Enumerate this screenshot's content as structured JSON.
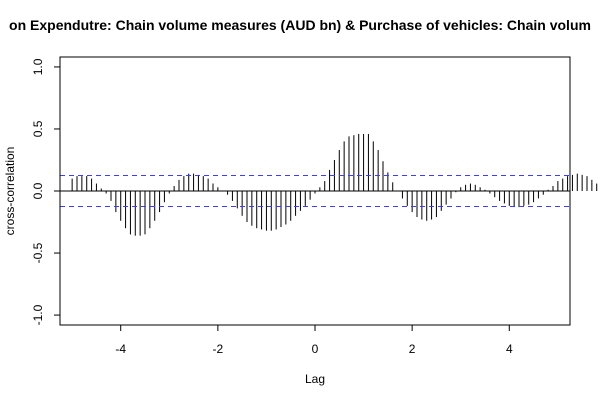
{
  "chart_data": {
    "type": "bar",
    "title": "on Expendutre: Chain volume measures (AUD bn) & Purchase of vehicles: Chain volum",
    "xlabel": "Lag",
    "ylabel": "cross-correlation",
    "xlim": [
      -5.25,
      5.25
    ],
    "ylim": [
      -1.08,
      1.08
    ],
    "x_ticks": [
      "-4",
      "-2",
      "0",
      "2",
      "4"
    ],
    "y_ticks": [
      "-1.0",
      "-0.5",
      "0.0",
      "0.5",
      "1.0"
    ],
    "confidence_limit": 0.125,
    "grid": false,
    "lag_step": 0.1,
    "lag_start": -5.0,
    "values": [
      0.1,
      0.12,
      0.12,
      0.12,
      0.1,
      0.06,
      0.02,
      -0.02,
      -0.08,
      -0.17,
      -0.24,
      -0.3,
      -0.35,
      -0.36,
      -0.36,
      -0.35,
      -0.3,
      -0.24,
      -0.17,
      -0.09,
      -0.02,
      0.04,
      0.09,
      0.12,
      0.14,
      0.14,
      0.13,
      0.12,
      0.1,
      0.06,
      0.03,
      0,
      -0.03,
      -0.08,
      -0.14,
      -0.2,
      -0.25,
      -0.28,
      -0.3,
      -0.31,
      -0.32,
      -0.32,
      -0.31,
      -0.29,
      -0.27,
      -0.24,
      -0.2,
      -0.16,
      -0.12,
      -0.07,
      -0.02,
      0.03,
      0.08,
      0.17,
      0.25,
      0.33,
      0.4,
      0.44,
      0.45,
      0.46,
      0.46,
      0.46,
      0.4,
      0.33,
      0.24,
      0.15,
      0.07,
      0,
      -0.06,
      -0.12,
      -0.17,
      -0.21,
      -0.23,
      -0.24,
      -0.23,
      -0.21,
      -0.16,
      -0.11,
      -0.06,
      -0.01,
      0.03,
      0.05,
      0.06,
      0.05,
      0.03,
      0.01,
      -0.02,
      -0.05,
      -0.08,
      -0.1,
      -0.12,
      -0.13,
      -0.13,
      -0.12,
      -0.11,
      -0.09,
      -0.06,
      -0.03,
      0.01,
      0.04,
      0.08,
      0.1,
      0.12,
      0.13,
      0.14,
      0.13,
      0.12,
      0.09,
      0.06,
      0.03,
      0,
      -0.03,
      -0.06,
      -0.09,
      -0.11
    ],
    "colors": {
      "bars": "#000000",
      "zero_line": "#000000",
      "confidence_lines": "#3f3fe6",
      "frame": "#000000"
    }
  }
}
